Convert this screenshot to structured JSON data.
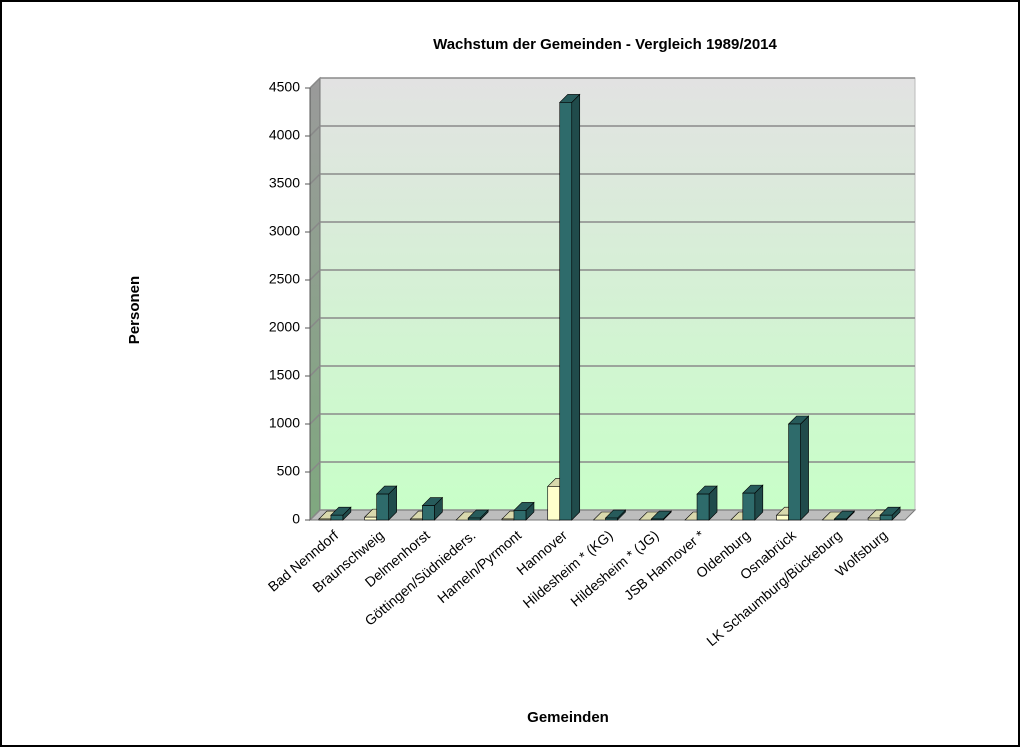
{
  "chart_data": {
    "type": "bar3d",
    "title": "Wachstum der Gemeinden - Vergleich 1989/2014",
    "y_label": "Personen",
    "x_label": "Gemeinden",
    "categories": [
      "Bad Nenndorf",
      "Braunschweig",
      "Delmenhorst",
      "Göttingen/Südnieders.",
      "Hameln/Pyrmont",
      "Hannover",
      "Hildesheim * (KG)",
      "Hildesheim * (JG)",
      "JSB Hannover *",
      "Oldenburg",
      "Osnabrück",
      "LK Schaumburg/Bückeburg",
      "Wolfsburg"
    ],
    "series": [
      {
        "color": "#ffffcc",
        "values": [
          10,
          30,
          10,
          0,
          10,
          350,
          0,
          0,
          0,
          0,
          50,
          0,
          20
        ]
      },
      {
        "color": "#2e6b6b",
        "values": [
          50,
          270,
          150,
          20,
          100,
          4350,
          20,
          10,
          270,
          280,
          1000,
          10,
          50
        ]
      }
    ],
    "ylim": [
      0,
      4500
    ],
    "yticks": [
      0,
      500,
      1000,
      1500,
      2000,
      2500,
      3000,
      3500,
      4000,
      4500
    ],
    "grid": true
  }
}
